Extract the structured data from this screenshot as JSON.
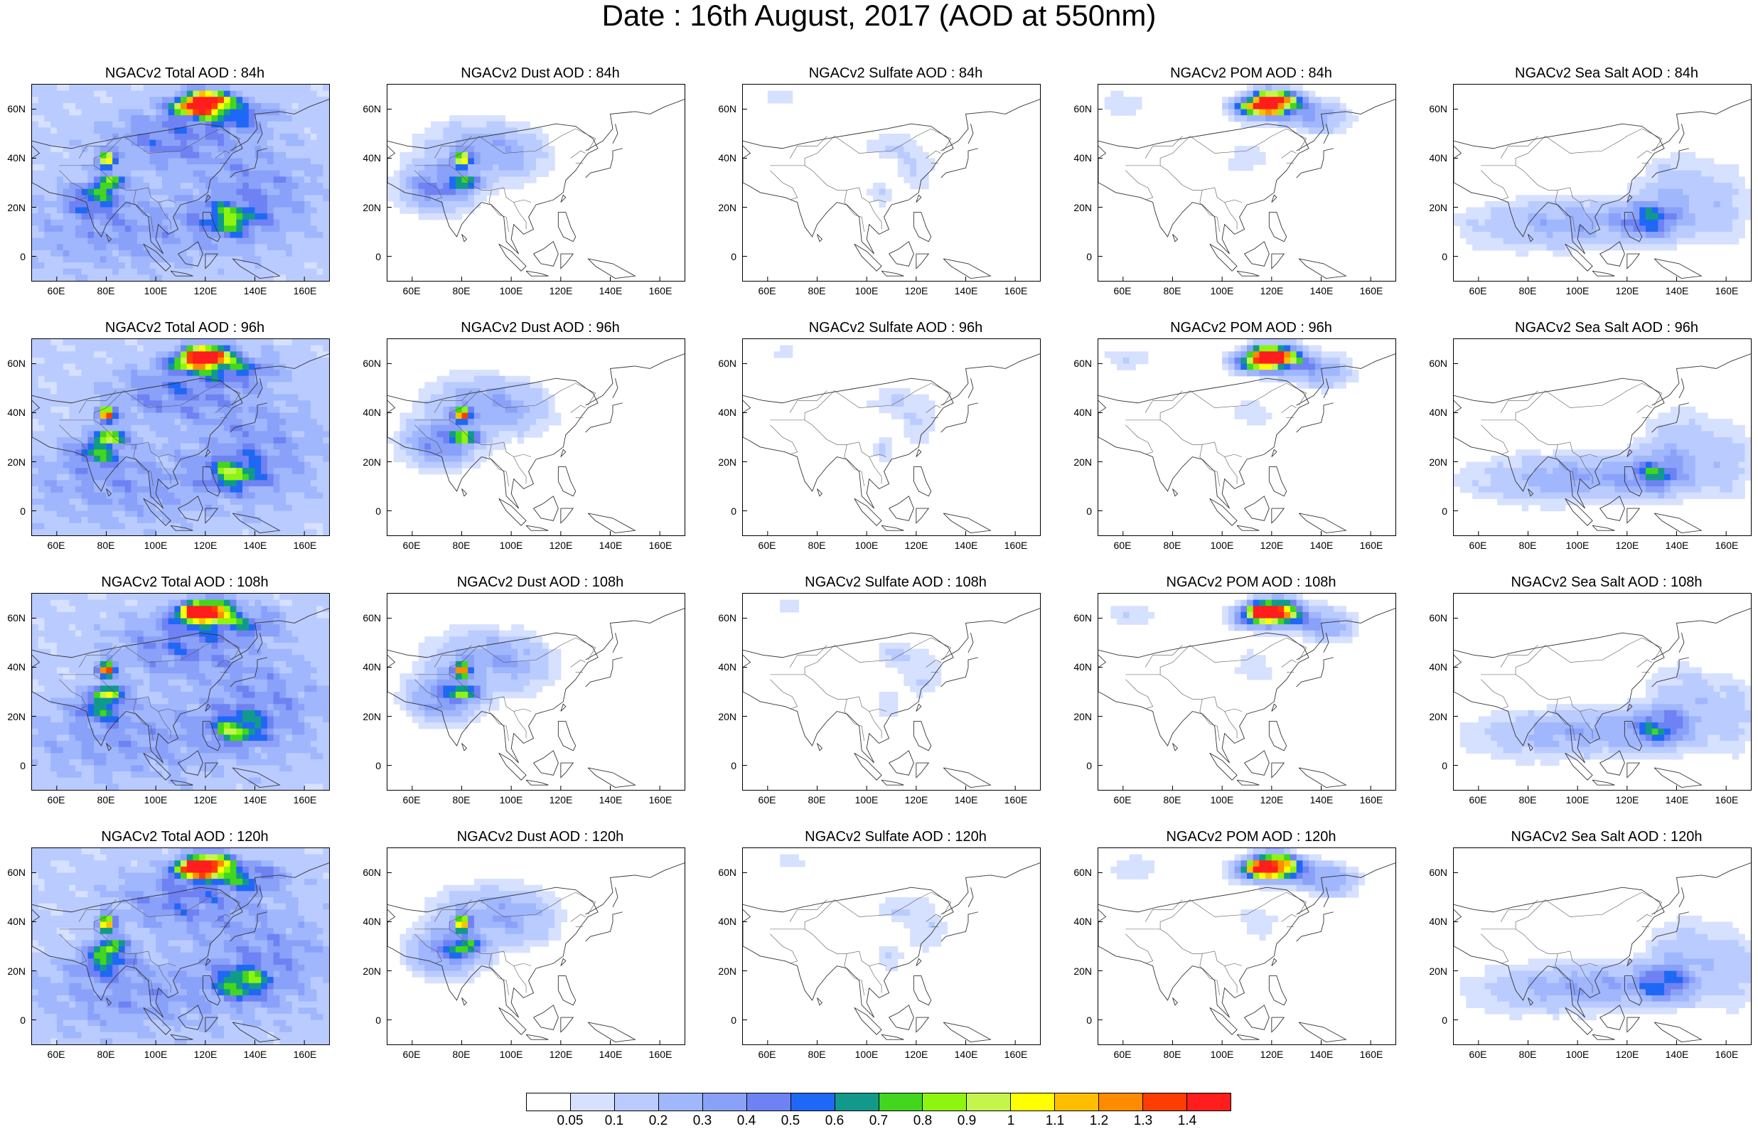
{
  "title": "Date : 16th August, 2017 (AOD at 550nm)",
  "panels": [
    [
      "NGACv2 Total AOD : 84h",
      "NGACv2 Dust AOD : 84h",
      "NGACv2 Sulfate AOD : 84h",
      "NGACv2 POM AOD : 84h",
      "NGACv2 Sea Salt AOD : 84h"
    ],
    [
      "NGACv2 Total AOD : 96h",
      "NGACv2 Dust AOD : 96h",
      "NGACv2 Sulfate AOD : 96h",
      "NGACv2 POM AOD : 96h",
      "NGACv2 Sea Salt AOD : 96h"
    ],
    [
      "NGACv2 Total AOD : 108h",
      "NGACv2 Dust AOD : 108h",
      "NGACv2 Sulfate AOD : 108h",
      "NGACv2 POM AOD : 108h",
      "NGACv2 Sea Salt AOD : 108h"
    ],
    [
      "NGACv2 Total AOD : 120h",
      "NGACv2 Dust AOD : 120h",
      "NGACv2 Sulfate AOD : 120h",
      "NGACv2 POM AOD : 120h",
      "NGACv2 Sea Salt  AOD : 120h"
    ]
  ],
  "axes": {
    "lon_range": [
      50,
      170
    ],
    "lat_range": [
      -10,
      70
    ],
    "lat_ticks": [
      "60N",
      "40N",
      "20N",
      "0"
    ],
    "lat_values": [
      60,
      40,
      20,
      0
    ],
    "lon_ticks": [
      "60E",
      "80E",
      "100E",
      "120E",
      "140E",
      "160E"
    ],
    "lon_values": [
      60,
      80,
      100,
      120,
      140,
      160
    ]
  },
  "colorbar": {
    "labels": [
      "0.05",
      "0.1",
      "0.2",
      "0.3",
      "0.4",
      "0.5",
      "0.6",
      "0.7",
      "0.8",
      "0.9",
      "1",
      "1.1",
      "1.2",
      "1.3",
      "1.4"
    ],
    "colors": [
      "#ffffff",
      "#d6e0ff",
      "#bacbff",
      "#a0b6fd",
      "#8aa1f9",
      "#6f82f3",
      "#1f68f5",
      "#119a8c",
      "#42d61e",
      "#8df50f",
      "#c4f54b",
      "#ffff00",
      "#ffbf00",
      "#ff8c00",
      "#ff3d00",
      "#ff1d1d"
    ]
  }
}
